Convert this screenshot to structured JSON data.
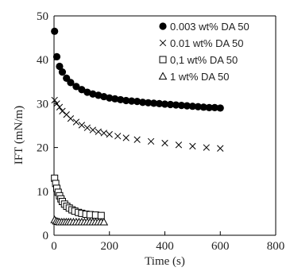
{
  "chart_data": {
    "type": "scatter",
    "xlabel": "Time (s)",
    "ylabel": "IFT (mN/m)",
    "xlim": [
      0,
      800
    ],
    "ylim": [
      0,
      50
    ],
    "xticks": [
      0,
      200,
      400,
      600,
      800
    ],
    "yticks": [
      0,
      10,
      20,
      30,
      40,
      50
    ],
    "grid": false,
    "legend_position": "top-right",
    "series": [
      {
        "name": "0.003 wt% DA 50",
        "marker": "filled-circle",
        "color": "#000000",
        "x": [
          2,
          10,
          20,
          30,
          45,
          60,
          80,
          100,
          120,
          140,
          160,
          180,
          200,
          220,
          240,
          260,
          280,
          300,
          320,
          340,
          360,
          380,
          400,
          420,
          440,
          460,
          480,
          500,
          520,
          540,
          560,
          580,
          600
        ],
        "y": [
          46.5,
          40.7,
          38.5,
          37.2,
          35.8,
          34.8,
          33.9,
          33.2,
          32.6,
          32.2,
          31.9,
          31.6,
          31.3,
          31.1,
          30.9,
          30.7,
          30.6,
          30.5,
          30.3,
          30.2,
          30.1,
          30.0,
          29.9,
          29.8,
          29.7,
          29.6,
          29.5,
          29.4,
          29.3,
          29.2,
          29.1,
          29.1,
          29.0
        ]
      },
      {
        "name": "0.01 wt% DA 50",
        "marker": "x",
        "color": "#000000",
        "x": [
          2,
          10,
          20,
          30,
          45,
          60,
          80,
          100,
          120,
          140,
          160,
          180,
          200,
          230,
          260,
          300,
          350,
          400,
          450,
          500,
          550,
          600
        ],
        "y": [
          30.8,
          30.0,
          29.2,
          28.3,
          27.5,
          26.6,
          25.8,
          25.1,
          24.5,
          24.0,
          23.6,
          23.3,
          23.0,
          22.6,
          22.2,
          21.8,
          21.4,
          21.0,
          20.6,
          20.3,
          20.0,
          19.8
        ]
      },
      {
        "name": "0,1 wt% DA 50",
        "marker": "open-square",
        "color": "#000000",
        "x": [
          2,
          6,
          10,
          15,
          20,
          25,
          30,
          38,
          46,
          55,
          65,
          75,
          88,
          100,
          115,
          130,
          150,
          170
        ],
        "y": [
          13.0,
          11.8,
          10.7,
          9.8,
          9.0,
          8.3,
          7.7,
          7.1,
          6.6,
          6.2,
          5.8,
          5.5,
          5.2,
          5.0,
          4.8,
          4.7,
          4.6,
          4.5
        ]
      },
      {
        "name": "1 wt% DA 50",
        "marker": "open-triangle",
        "color": "#000000",
        "x": [
          2,
          8,
          14,
          20,
          28,
          36,
          44,
          52,
          60,
          70,
          80,
          90,
          100,
          110,
          120,
          130,
          140,
          150,
          160,
          170,
          180
        ],
        "y": [
          3.5,
          3.2,
          3.1,
          3.0,
          3.0,
          3.0,
          3.0,
          3.0,
          3.0,
          3.0,
          3.0,
          3.0,
          3.0,
          3.0,
          3.0,
          3.0,
          3.0,
          3.0,
          3.0,
          3.0,
          3.0
        ]
      }
    ]
  }
}
